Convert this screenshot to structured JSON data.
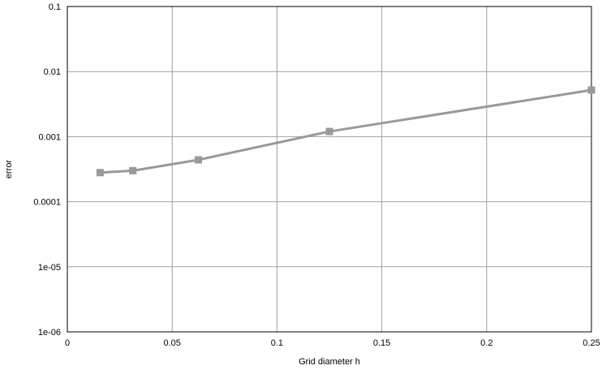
{
  "chart_data": {
    "type": "line",
    "title": "",
    "xlabel": "Grid diameter h",
    "ylabel": "error",
    "xlim": [
      0,
      0.25
    ],
    "ylim": [
      1e-06,
      0.1
    ],
    "yscale": "log",
    "grid": true,
    "legend": "none",
    "x_ticks": [
      {
        "value": 0,
        "label": "0"
      },
      {
        "value": 0.05,
        "label": "0.05"
      },
      {
        "value": 0.1,
        "label": "0.1"
      },
      {
        "value": 0.15,
        "label": "0.15"
      },
      {
        "value": 0.2,
        "label": "0.2"
      },
      {
        "value": 0.25,
        "label": "0.25"
      }
    ],
    "y_ticks": [
      {
        "value": 1e-06,
        "label": "1e-06"
      },
      {
        "value": 1e-05,
        "label": "1e-05"
      },
      {
        "value": 0.0001,
        "label": "0.0001"
      },
      {
        "value": 0.001,
        "label": "0.001"
      },
      {
        "value": 0.01,
        "label": "0.01"
      },
      {
        "value": 0.1,
        "label": "0.1"
      }
    ],
    "series": [
      {
        "marker": "square",
        "color": "#999999",
        "x": [
          0.015625,
          0.03125,
          0.0625,
          0.125,
          0.25
        ],
        "y": [
          0.00028,
          0.0003,
          0.00044,
          0.0012,
          0.0052
        ]
      }
    ]
  }
}
